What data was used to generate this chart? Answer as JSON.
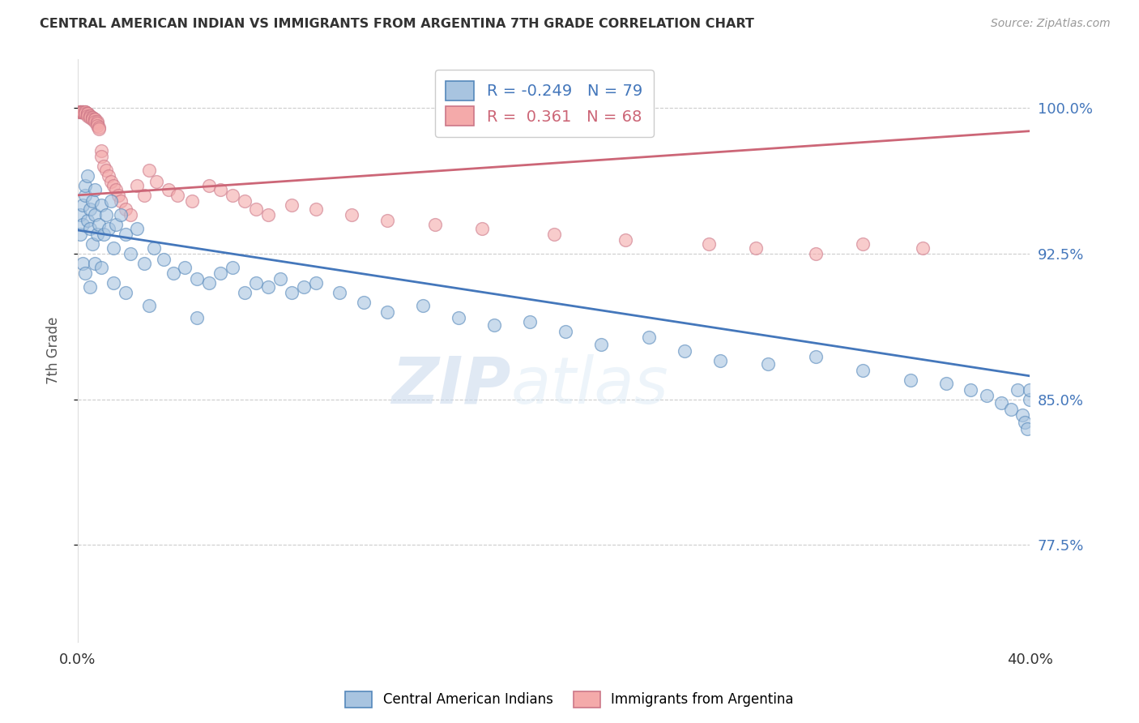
{
  "title": "CENTRAL AMERICAN INDIAN VS IMMIGRANTS FROM ARGENTINA 7TH GRADE CORRELATION CHART",
  "source": "Source: ZipAtlas.com",
  "ylabel": "7th Grade",
  "ytick_labels": [
    "100.0%",
    "92.5%",
    "85.0%",
    "77.5%"
  ],
  "ytick_values": [
    1.0,
    0.925,
    0.85,
    0.775
  ],
  "xlim": [
    0.0,
    0.4
  ],
  "ylim": [
    0.725,
    1.025
  ],
  "blue_color": "#A8C4E0",
  "pink_color": "#F4AAAA",
  "blue_edge_color": "#5588BB",
  "pink_edge_color": "#CC7788",
  "blue_line_color": "#4477BB",
  "pink_line_color": "#CC6677",
  "legend_blue_R": "-0.249",
  "legend_blue_N": "79",
  "legend_pink_R": "0.361",
  "legend_pink_N": "68",
  "blue_scatter_x": [
    0.001,
    0.001,
    0.002,
    0.002,
    0.003,
    0.003,
    0.004,
    0.004,
    0.005,
    0.005,
    0.006,
    0.006,
    0.007,
    0.007,
    0.008,
    0.009,
    0.01,
    0.011,
    0.012,
    0.013,
    0.014,
    0.015,
    0.016,
    0.018,
    0.02,
    0.022,
    0.025,
    0.028,
    0.032,
    0.036,
    0.04,
    0.045,
    0.05,
    0.055,
    0.06,
    0.065,
    0.07,
    0.075,
    0.08,
    0.085,
    0.09,
    0.095,
    0.1,
    0.11,
    0.12,
    0.13,
    0.145,
    0.16,
    0.175,
    0.19,
    0.205,
    0.22,
    0.24,
    0.255,
    0.27,
    0.29,
    0.31,
    0.33,
    0.35,
    0.365,
    0.375,
    0.382,
    0.388,
    0.392,
    0.395,
    0.397,
    0.398,
    0.399,
    0.4,
    0.4,
    0.002,
    0.003,
    0.005,
    0.007,
    0.01,
    0.015,
    0.02,
    0.03,
    0.05
  ],
  "blue_scatter_y": [
    0.935,
    0.945,
    0.95,
    0.94,
    0.955,
    0.96,
    0.942,
    0.965,
    0.938,
    0.948,
    0.952,
    0.93,
    0.945,
    0.958,
    0.935,
    0.94,
    0.95,
    0.935,
    0.945,
    0.938,
    0.952,
    0.928,
    0.94,
    0.945,
    0.935,
    0.925,
    0.938,
    0.92,
    0.928,
    0.922,
    0.915,
    0.918,
    0.912,
    0.91,
    0.915,
    0.918,
    0.905,
    0.91,
    0.908,
    0.912,
    0.905,
    0.908,
    0.91,
    0.905,
    0.9,
    0.895,
    0.898,
    0.892,
    0.888,
    0.89,
    0.885,
    0.878,
    0.882,
    0.875,
    0.87,
    0.868,
    0.872,
    0.865,
    0.86,
    0.858,
    0.855,
    0.852,
    0.848,
    0.845,
    0.855,
    0.842,
    0.838,
    0.835,
    0.85,
    0.855,
    0.92,
    0.915,
    0.908,
    0.92,
    0.918,
    0.91,
    0.905,
    0.898,
    0.892
  ],
  "pink_scatter_x": [
    0.001,
    0.001,
    0.001,
    0.001,
    0.002,
    0.002,
    0.002,
    0.002,
    0.003,
    0.003,
    0.003,
    0.003,
    0.004,
    0.004,
    0.004,
    0.004,
    0.005,
    0.005,
    0.005,
    0.006,
    0.006,
    0.006,
    0.007,
    0.007,
    0.007,
    0.008,
    0.008,
    0.008,
    0.009,
    0.009,
    0.01,
    0.01,
    0.011,
    0.012,
    0.013,
    0.014,
    0.015,
    0.016,
    0.017,
    0.018,
    0.02,
    0.022,
    0.025,
    0.028,
    0.03,
    0.033,
    0.038,
    0.042,
    0.048,
    0.055,
    0.06,
    0.065,
    0.07,
    0.075,
    0.08,
    0.09,
    0.1,
    0.115,
    0.13,
    0.15,
    0.17,
    0.2,
    0.23,
    0.265,
    0.285,
    0.31,
    0.33,
    0.355
  ],
  "pink_scatter_y": [
    0.998,
    0.998,
    0.998,
    0.998,
    0.998,
    0.998,
    0.998,
    0.998,
    0.998,
    0.998,
    0.998,
    0.997,
    0.997,
    0.997,
    0.997,
    0.996,
    0.996,
    0.996,
    0.995,
    0.995,
    0.995,
    0.994,
    0.994,
    0.994,
    0.993,
    0.993,
    0.992,
    0.991,
    0.99,
    0.989,
    0.978,
    0.975,
    0.97,
    0.968,
    0.965,
    0.962,
    0.96,
    0.958,
    0.955,
    0.952,
    0.948,
    0.945,
    0.96,
    0.955,
    0.968,
    0.962,
    0.958,
    0.955,
    0.952,
    0.96,
    0.958,
    0.955,
    0.952,
    0.948,
    0.945,
    0.95,
    0.948,
    0.945,
    0.942,
    0.94,
    0.938,
    0.935,
    0.932,
    0.93,
    0.928,
    0.925,
    0.93,
    0.928
  ],
  "blue_line_x": [
    0.0,
    0.4
  ],
  "blue_line_y": [
    0.937,
    0.862
  ],
  "pink_line_x": [
    0.0,
    0.4
  ],
  "pink_line_y": [
    0.955,
    0.988
  ],
  "watermark_zip": "ZIP",
  "watermark_atlas": "atlas",
  "grid_color": "#CCCCCC",
  "background_color": "#FFFFFF",
  "tick_color": "#4477BB"
}
